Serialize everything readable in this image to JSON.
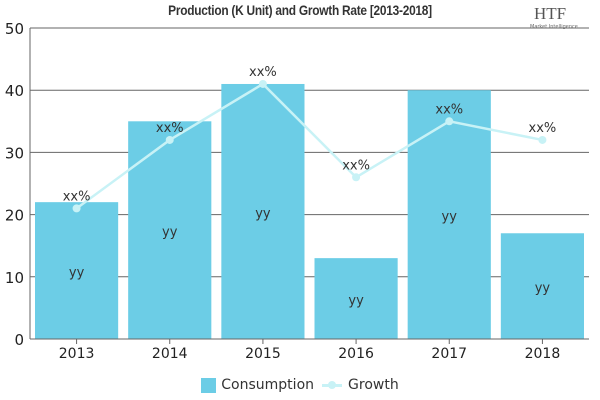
{
  "chart_data": {
    "type": "bar",
    "title": "Production (K Unit) and Growth Rate [2013-2018]",
    "categories": [
      "2013",
      "2014",
      "2015",
      "2016",
      "2017",
      "2018"
    ],
    "ylim": [
      0,
      50
    ],
    "yticks": [
      0,
      10,
      20,
      30,
      40,
      50
    ],
    "grid": true,
    "legend": "bottom",
    "series": [
      {
        "name": "Consumption",
        "type": "bar",
        "color": "#6ccde6",
        "values": [
          22,
          35,
          41,
          13,
          40,
          17
        ],
        "labels": [
          "yy",
          "yy",
          "yy",
          "yy",
          "yy",
          "yy"
        ]
      },
      {
        "name": "Growth",
        "type": "line",
        "color": "#c8f2f6",
        "values": [
          21,
          32,
          41,
          26,
          35,
          32
        ],
        "labels": [
          "xx%",
          "xx%",
          "xx%",
          "xx%",
          "xx%",
          "xx%"
        ]
      }
    ]
  },
  "logo": {
    "text": "HTF",
    "subtitle": "Market Intelligence"
  }
}
